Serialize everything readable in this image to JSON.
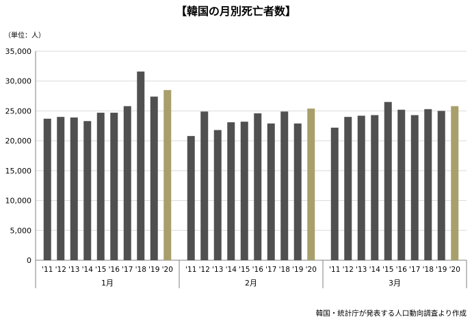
{
  "chart_data": {
    "type": "bar",
    "title": "【韓国の月別死亡者数】",
    "unit_label": "（単位：人）",
    "source": "韓国・統計庁が発表する人口動向調査より作成",
    "ylim": [
      0,
      35000
    ],
    "yticks": [
      0,
      5000,
      10000,
      15000,
      20000,
      25000,
      30000,
      35000
    ],
    "ytick_labels": [
      "0",
      "5,000",
      "10,000",
      "15,000",
      "20,000",
      "25,000",
      "30,000",
      "35,000"
    ],
    "grid": true,
    "colors": {
      "previous_years": "#505050",
      "year_2020": "#a89f6c",
      "grid": "#d9d9d9",
      "axis": "#7f7f7f"
    },
    "groups": [
      {
        "name": "1月",
        "categories": [
          "'11",
          "'12",
          "'13",
          "'14",
          "'15",
          "'16",
          "'17",
          "'18",
          "'19",
          "'20"
        ],
        "values": [
          23700,
          24000,
          23900,
          23300,
          24700,
          24700,
          25800,
          31600,
          27400,
          28500
        ]
      },
      {
        "name": "2月",
        "categories": [
          "'11",
          "'12",
          "'13",
          "'14",
          "'15",
          "'16",
          "'17",
          "'18",
          "'19",
          "'20"
        ],
        "values": [
          20800,
          24900,
          21800,
          23100,
          23200,
          24600,
          22900,
          24900,
          22900,
          25400
        ]
      },
      {
        "name": "3月",
        "categories": [
          "'11",
          "'12",
          "'13",
          "'14",
          "'15",
          "'16",
          "'17",
          "'18",
          "'19",
          "'20"
        ],
        "values": [
          22200,
          24000,
          24200,
          24300,
          26500,
          25200,
          24300,
          25300,
          25000,
          25800
        ]
      }
    ]
  }
}
